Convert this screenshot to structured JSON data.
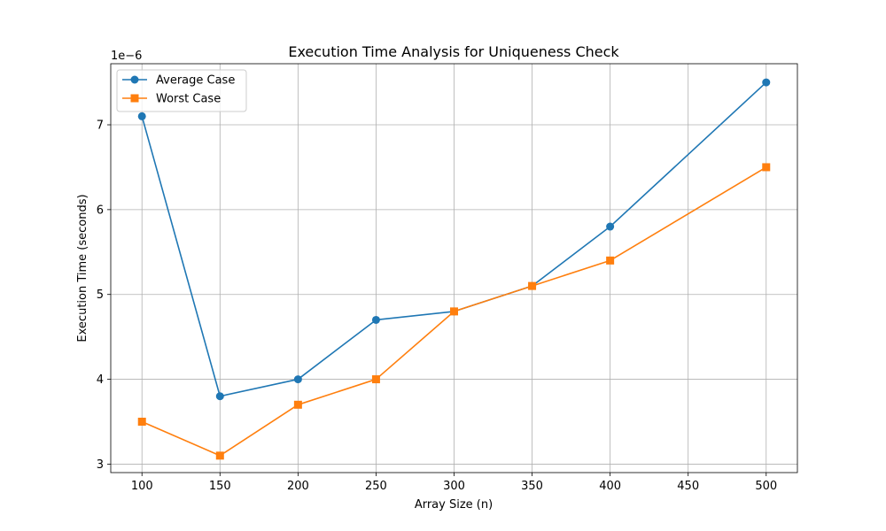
{
  "chart_data": {
    "type": "line",
    "title": "Execution Time Analysis for Uniqueness Check",
    "xlabel": "Array Size (n)",
    "ylabel": "Execution Time (seconds)",
    "y_offset_text": "1e−6",
    "y_scale_factor": 1e-06,
    "xlim": [
      80,
      520
    ],
    "ylim": [
      2.9,
      7.72
    ],
    "x_ticks": [
      100,
      150,
      200,
      250,
      300,
      350,
      400,
      450,
      500
    ],
    "x_tick_labels": [
      "100",
      "150",
      "200",
      "250",
      "300",
      "350",
      "400",
      "450",
      "500"
    ],
    "y_ticks": [
      3,
      4,
      5,
      6,
      7
    ],
    "y_tick_labels": [
      "3",
      "4",
      "5",
      "6",
      "7"
    ],
    "grid": true,
    "legend_position": "upper-left",
    "x": [
      100,
      150,
      200,
      250,
      300,
      350,
      400,
      500
    ],
    "series": [
      {
        "name": "Average Case",
        "color": "#1f77b4",
        "marker": "circle",
        "values": [
          7.1,
          3.8,
          4.0,
          4.7,
          4.8,
          5.1,
          5.8,
          7.5
        ]
      },
      {
        "name": "Worst Case",
        "color": "#ff7f0e",
        "marker": "square",
        "values": [
          3.5,
          3.1,
          3.7,
          4.0,
          4.8,
          5.1,
          5.4,
          6.5
        ]
      }
    ]
  }
}
